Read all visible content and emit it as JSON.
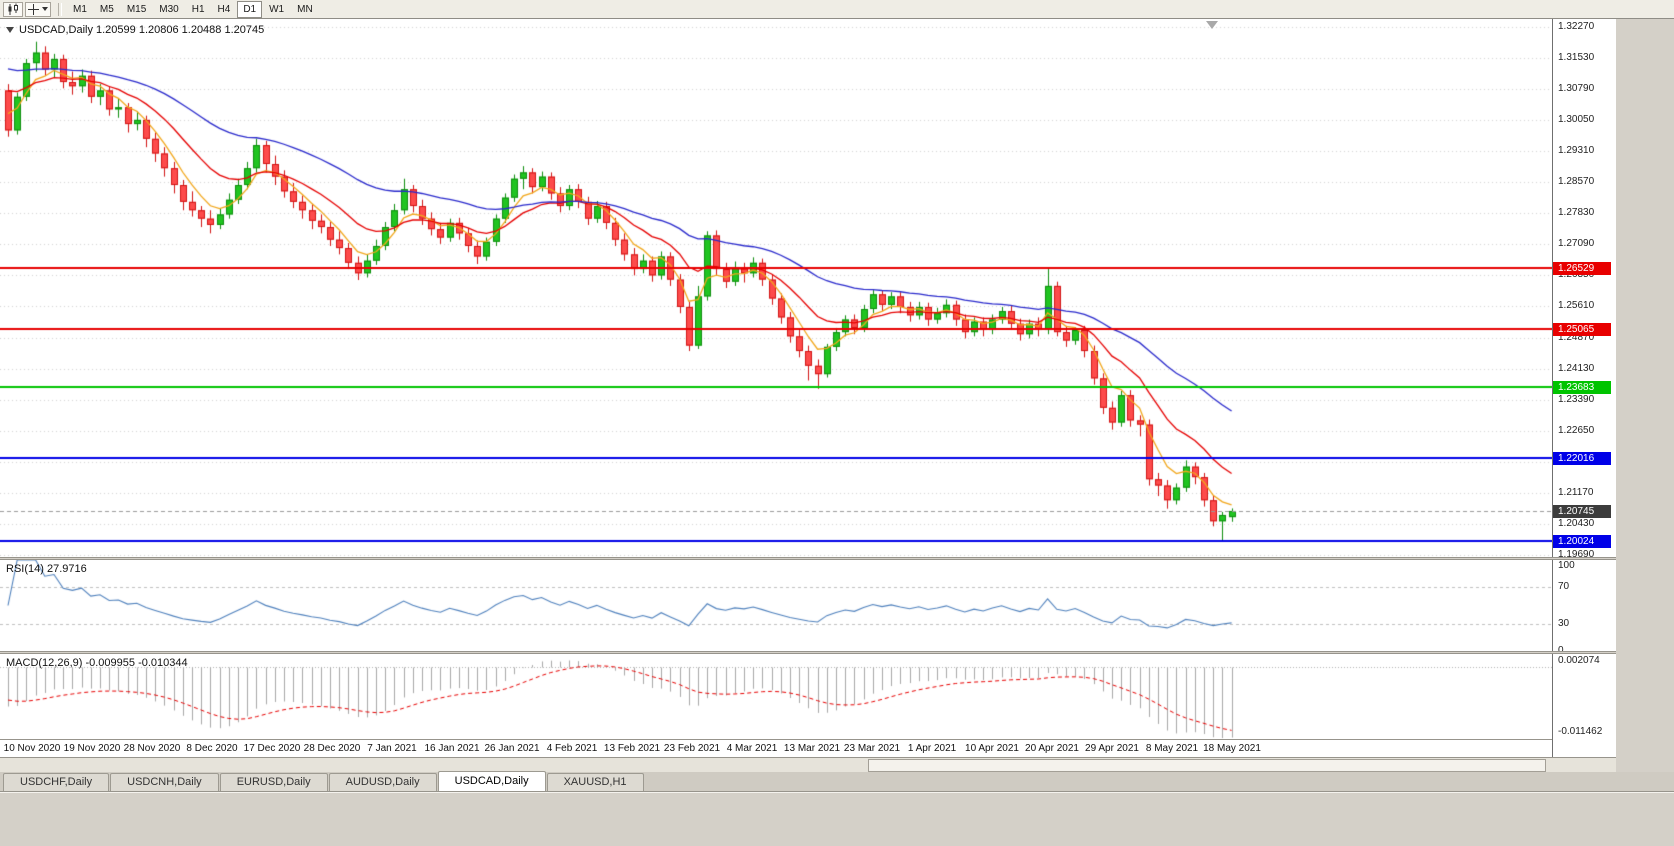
{
  "toolbar": {
    "tools": [
      {
        "icon": "candlestick-chart-icon"
      },
      {
        "icon": "crosshair-icon",
        "caret": true
      }
    ],
    "timeframes": [
      {
        "label": "M1"
      },
      {
        "label": "M5"
      },
      {
        "label": "M15"
      },
      {
        "label": "M30"
      },
      {
        "label": "H1"
      },
      {
        "label": "H4"
      },
      {
        "label": "D1",
        "active": true
      },
      {
        "label": "W1"
      },
      {
        "label": "MN"
      }
    ]
  },
  "chart_data": {
    "type": "candlestick",
    "symbol": "USDCAD",
    "period": "Daily",
    "ohlc_label": "USDCAD,Daily 1.20599 1.20806 1.20488 1.20745",
    "last_candle": {
      "open": "1.20599",
      "high": "1.20806",
      "low": "1.20488",
      "close": "1.20745"
    },
    "x_labels": [
      "10 Nov 2020",
      "19 Nov 2020",
      "28 Nov 2020",
      "8 Dec 2020",
      "17 Dec 2020",
      "28 Dec 2020",
      "7 Jan 2021",
      "16 Jan 2021",
      "26 Jan 2021",
      "4 Feb 2021",
      "13 Feb 2021",
      "23 Feb 2021",
      "4 Mar 2021",
      "13 Mar 2021",
      "23 Mar 2021",
      "1 Apr 2021",
      "10 Apr 2021",
      "20 Apr 2021",
      "29 Apr 2021",
      "8 May 2021",
      "18 May 2021"
    ],
    "y_ticks": [
      "1.32270",
      "1.31530",
      "1.30790",
      "1.30050",
      "1.29310",
      "1.28570",
      "1.27830",
      "1.27090",
      "1.26350",
      "1.25610",
      "1.24870",
      "1.24130",
      "1.23390",
      "1.22650",
      "1.21910",
      "1.21170",
      "1.20430",
      "1.19690"
    ],
    "price_range": {
      "top": 1.3245,
      "bottom": 1.1965
    },
    "colors": {
      "up": "#21c421",
      "up_border": "#0e8e0e",
      "down": "#fd4b4b",
      "down_border": "#d21414",
      "background": "#ffffff",
      "grid": "#d4d4d4"
    },
    "moving_averages": [
      {
        "name": "fast-ma",
        "period": 5,
        "start": 1.304,
        "color": "#f2a71b"
      },
      {
        "name": "mid-ma",
        "period": 13,
        "start": 1.309,
        "color": "#e60000"
      },
      {
        "name": "slow-ma",
        "period": 34,
        "start": 1.3135,
        "color": "#2929cc"
      }
    ],
    "hlines": [
      {
        "price": 1.26529,
        "label": "1.26529",
        "color": "#e80000"
      },
      {
        "price": 1.25065,
        "label": "1.25065",
        "color": "#e80000"
      },
      {
        "price": 1.23683,
        "label": "1.23683",
        "color": "#00c400"
      },
      {
        "price": 1.22016,
        "label": "1.22016",
        "color": "#0000e8"
      },
      {
        "price": 1.20024,
        "label": "1.20024",
        "color": "#0000e8"
      }
    ],
    "current_price": {
      "price": 1.20745,
      "label": "1.20745",
      "color": "#3c3c3c"
    },
    "rsi": {
      "label": "RSI(14) 27.9716",
      "period": 14,
      "value": 27.9716,
      "levels": [
        70,
        30
      ],
      "scale_labels": [
        "100",
        "70",
        "30",
        "0"
      ],
      "color": "#4f81bd"
    },
    "macd": {
      "label": "MACD(12,26,9) -0.009955 -0.010344",
      "fast": 12,
      "slow": 26,
      "signal_period": 9,
      "macd_value": -0.009955,
      "signal_value": -0.010344,
      "scale_top": "0.002074",
      "scale_bottom": "-0.011462",
      "scale_top_value": 0.002074,
      "scale_bottom_value": -0.011462,
      "start_fast": 1.313,
      "start_slow": 1.3185,
      "start_signal": -0.005,
      "bar_color": "#a8a8a8",
      "signal_color": "#e80000"
    },
    "candles": [
      [
        1.3075,
        1.309,
        1.2965,
        1.298
      ],
      [
        1.298,
        1.307,
        1.297,
        1.306
      ],
      [
        1.306,
        1.315,
        1.305,
        1.314
      ],
      [
        1.314,
        1.3191,
        1.312,
        1.3165
      ],
      [
        1.3165,
        1.318,
        1.311,
        1.3125
      ],
      [
        1.3125,
        1.3162,
        1.3105,
        1.315
      ],
      [
        1.315,
        1.316,
        1.308,
        1.3095
      ],
      [
        1.3095,
        1.312,
        1.3065,
        1.3085
      ],
      [
        1.3085,
        1.3125,
        1.307,
        1.311
      ],
      [
        1.311,
        1.3122,
        1.3045,
        1.306
      ],
      [
        1.306,
        1.309,
        1.304,
        1.3075
      ],
      [
        1.3075,
        1.3085,
        1.3015,
        1.303
      ],
      [
        1.303,
        1.3055,
        1.301,
        1.3035
      ],
      [
        1.3035,
        1.3045,
        1.2975,
        1.2995
      ],
      [
        1.2995,
        1.3025,
        1.298,
        1.3005
      ],
      [
        1.3005,
        1.3015,
        1.294,
        1.296
      ],
      [
        1.296,
        1.2975,
        1.2905,
        1.2925
      ],
      [
        1.2925,
        1.294,
        1.287,
        1.289
      ],
      [
        1.289,
        1.2905,
        1.283,
        1.285
      ],
      [
        1.285,
        1.2862,
        1.279,
        1.281
      ],
      [
        1.281,
        1.2835,
        1.2775,
        1.279
      ],
      [
        1.279,
        1.28,
        1.275,
        1.277
      ],
      [
        1.277,
        1.279,
        1.2735,
        1.2755
      ],
      [
        1.2755,
        1.2795,
        1.2745,
        1.278
      ],
      [
        1.278,
        1.283,
        1.277,
        1.2815
      ],
      [
        1.2815,
        1.2865,
        1.2805,
        1.285
      ],
      [
        1.285,
        1.2905,
        1.284,
        1.289
      ],
      [
        1.289,
        1.296,
        1.288,
        1.2945
      ],
      [
        1.2945,
        1.2955,
        1.288,
        1.29
      ],
      [
        1.29,
        1.292,
        1.285,
        1.287
      ],
      [
        1.287,
        1.2885,
        1.282,
        1.2835
      ],
      [
        1.2835,
        1.2855,
        1.2795,
        1.281
      ],
      [
        1.281,
        1.2825,
        1.277,
        1.279
      ],
      [
        1.279,
        1.2805,
        1.2745,
        1.2765
      ],
      [
        1.2765,
        1.278,
        1.2735,
        1.275
      ],
      [
        1.275,
        1.2762,
        1.2705,
        1.272
      ],
      [
        1.272,
        1.274,
        1.2685,
        1.27
      ],
      [
        1.27,
        1.2712,
        1.265,
        1.2665
      ],
      [
        1.2665,
        1.268,
        1.2624,
        1.264
      ],
      [
        1.264,
        1.2685,
        1.263,
        1.267
      ],
      [
        1.267,
        1.272,
        1.266,
        1.2705
      ],
      [
        1.2705,
        1.2762,
        1.2695,
        1.275
      ],
      [
        1.275,
        1.2805,
        1.274,
        1.279
      ],
      [
        1.279,
        1.2865,
        1.278,
        1.284
      ],
      [
        1.284,
        1.285,
        1.2785,
        1.28
      ],
      [
        1.28,
        1.2815,
        1.2755,
        1.277
      ],
      [
        1.277,
        1.2785,
        1.273,
        1.2745
      ],
      [
        1.2745,
        1.276,
        1.271,
        1.2725
      ],
      [
        1.2725,
        1.277,
        1.2715,
        1.276
      ],
      [
        1.276,
        1.2772,
        1.272,
        1.2735
      ],
      [
        1.2735,
        1.2748,
        1.269,
        1.2705
      ],
      [
        1.2705,
        1.2718,
        1.2662,
        1.268
      ],
      [
        1.268,
        1.2725,
        1.267,
        1.2715
      ],
      [
        1.2715,
        1.278,
        1.2705,
        1.277
      ],
      [
        1.277,
        1.283,
        1.276,
        1.282
      ],
      [
        1.282,
        1.2875,
        1.281,
        1.2865
      ],
      [
        1.2865,
        1.2895,
        1.284,
        1.288
      ],
      [
        1.288,
        1.289,
        1.283,
        1.2845
      ],
      [
        1.2845,
        1.2882,
        1.2835,
        1.287
      ],
      [
        1.287,
        1.288,
        1.2815,
        1.283
      ],
      [
        1.283,
        1.2845,
        1.2785,
        1.28
      ],
      [
        1.28,
        1.285,
        1.279,
        1.284
      ],
      [
        1.284,
        1.2852,
        1.2795,
        1.281
      ],
      [
        1.281,
        1.2822,
        1.2755,
        1.277
      ],
      [
        1.277,
        1.2812,
        1.276,
        1.28
      ],
      [
        1.28,
        1.281,
        1.2745,
        1.276
      ],
      [
        1.276,
        1.2772,
        1.2705,
        1.272
      ],
      [
        1.272,
        1.2735,
        1.267,
        1.2685
      ],
      [
        1.2685,
        1.27,
        1.2635,
        1.265
      ],
      [
        1.265,
        1.2685,
        1.264,
        1.267
      ],
      [
        1.267,
        1.268,
        1.262,
        1.2635
      ],
      [
        1.2635,
        1.2692,
        1.2625,
        1.268
      ],
      [
        1.268,
        1.269,
        1.261,
        1.2625
      ],
      [
        1.2625,
        1.2638,
        1.2545,
        1.256
      ],
      [
        1.256,
        1.2572,
        1.2455,
        1.2468
      ],
      [
        1.2468,
        1.261,
        1.246,
        1.2585
      ],
      [
        1.2585,
        1.274,
        1.2575,
        1.273
      ],
      [
        1.273,
        1.2742,
        1.2635,
        1.265
      ],
      [
        1.265,
        1.2665,
        1.2605,
        1.262
      ],
      [
        1.262,
        1.2668,
        1.261,
        1.2655
      ],
      [
        1.2655,
        1.2665,
        1.2618,
        1.264
      ],
      [
        1.264,
        1.2678,
        1.263,
        1.2665
      ],
      [
        1.2665,
        1.2675,
        1.261,
        1.2625
      ],
      [
        1.2625,
        1.2638,
        1.2565,
        1.258
      ],
      [
        1.258,
        1.2592,
        1.252,
        1.2535
      ],
      [
        1.2535,
        1.2548,
        1.2475,
        1.249
      ],
      [
        1.249,
        1.2505,
        1.244,
        1.2455
      ],
      [
        1.2455,
        1.2468,
        1.2385,
        1.242
      ],
      [
        1.242,
        1.2435,
        1.2365,
        1.24
      ],
      [
        1.24,
        1.2472,
        1.2392,
        1.2465
      ],
      [
        1.2465,
        1.251,
        1.2455,
        1.25
      ],
      [
        1.25,
        1.254,
        1.249,
        1.253
      ],
      [
        1.253,
        1.2542,
        1.2495,
        1.251
      ],
      [
        1.251,
        1.2565,
        1.25,
        1.2555
      ],
      [
        1.2555,
        1.26,
        1.2545,
        1.259
      ],
      [
        1.259,
        1.26,
        1.255,
        1.2565
      ],
      [
        1.2565,
        1.2595,
        1.2555,
        1.2585
      ],
      [
        1.2585,
        1.2595,
        1.2545,
        1.256
      ],
      [
        1.256,
        1.2572,
        1.2525,
        1.254
      ],
      [
        1.254,
        1.2572,
        1.253,
        1.256
      ],
      [
        1.256,
        1.257,
        1.2515,
        1.253
      ],
      [
        1.253,
        1.2558,
        1.252,
        1.2545
      ],
      [
        1.2545,
        1.2578,
        1.2535,
        1.2565
      ],
      [
        1.2565,
        1.2575,
        1.2515,
        1.253
      ],
      [
        1.253,
        1.2542,
        1.2485,
        1.25
      ],
      [
        1.25,
        1.2535,
        1.249,
        1.2525
      ],
      [
        1.2525,
        1.2535,
        1.249,
        1.2505
      ],
      [
        1.2505,
        1.2542,
        1.2495,
        1.253
      ],
      [
        1.253,
        1.256,
        1.252,
        1.255
      ],
      [
        1.255,
        1.2562,
        1.2505,
        1.252
      ],
      [
        1.252,
        1.2532,
        1.248,
        1.2495
      ],
      [
        1.2495,
        1.253,
        1.2485,
        1.252
      ],
      [
        1.252,
        1.2535,
        1.249,
        1.2505
      ],
      [
        1.2505,
        1.265,
        1.2495,
        1.261
      ],
      [
        1.261,
        1.262,
        1.249,
        1.25
      ],
      [
        1.25,
        1.2515,
        1.2465,
        1.248
      ],
      [
        1.248,
        1.2512,
        1.247,
        1.2505
      ],
      [
        1.2505,
        1.2515,
        1.244,
        1.2455
      ],
      [
        1.2455,
        1.2468,
        1.2375,
        1.239
      ],
      [
        1.239,
        1.2402,
        1.2305,
        1.232
      ],
      [
        1.232,
        1.2335,
        1.2268,
        1.2285
      ],
      [
        1.2285,
        1.236,
        1.2275,
        1.235
      ],
      [
        1.235,
        1.2362,
        1.2275,
        1.229
      ],
      [
        1.229,
        1.2302,
        1.2252,
        1.228
      ],
      [
        1.228,
        1.2292,
        1.2135,
        1.215
      ],
      [
        1.215,
        1.2165,
        1.211,
        1.2135
      ],
      [
        1.2135,
        1.2148,
        1.208,
        1.21
      ],
      [
        1.21,
        1.214,
        1.209,
        1.213
      ],
      [
        1.213,
        1.2195,
        1.212,
        1.218
      ],
      [
        1.218,
        1.219,
        1.2138,
        1.2155
      ],
      [
        1.2155,
        1.2165,
        1.2085,
        1.21
      ],
      [
        1.21,
        1.2112,
        1.2038,
        1.205
      ],
      [
        1.205,
        1.2072,
        1.2001,
        1.2065
      ],
      [
        1.20599,
        1.20806,
        1.20488,
        1.20745
      ]
    ]
  },
  "tabs": {
    "items": [
      {
        "label": "USDCHF,Daily"
      },
      {
        "label": "USDCNH,Daily"
      },
      {
        "label": "EURUSD,Daily"
      },
      {
        "label": "AUDUSD,Daily"
      },
      {
        "label": "USDCAD,Daily",
        "active": true
      },
      {
        "label": "XAUUSD,H1"
      }
    ]
  }
}
